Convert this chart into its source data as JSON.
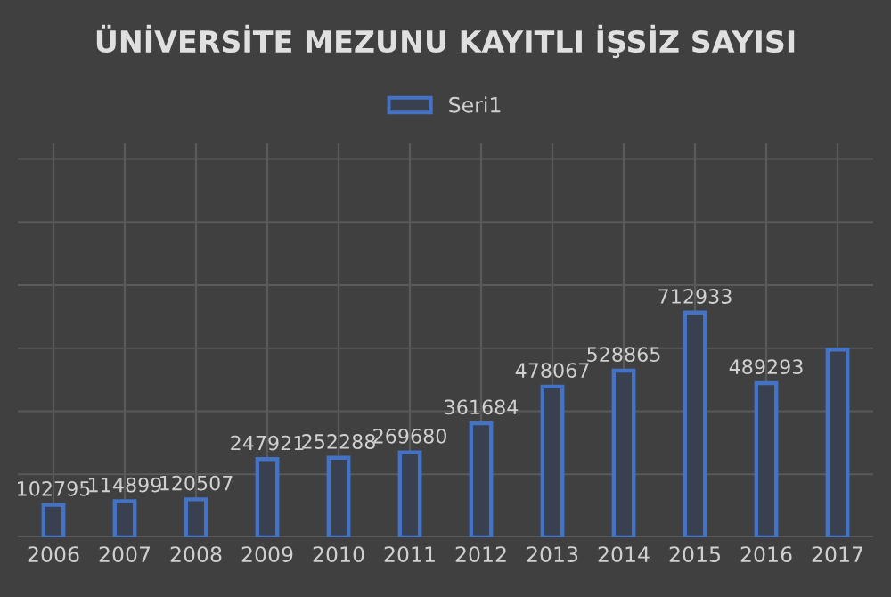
{
  "chart_data": {
    "type": "bar",
    "title": "ÜNİVERSİTE MEZUNU KAYITLI İŞSİZ SAYISI",
    "categories": [
      "2006",
      "2007",
      "2008",
      "2009",
      "2010",
      "2011",
      "2012",
      "2013",
      "2014",
      "2015",
      "2016",
      "2017"
    ],
    "series": [
      {
        "name": "Seri1",
        "color": "#4472c4",
        "values": [
          102795,
          114899,
          120507,
          247921,
          252288,
          269680,
          361684,
          478067,
          528865,
          712933,
          489293,
          596000
        ],
        "value_labels": [
          "102795",
          "114899",
          "120507",
          "247921",
          "252288",
          "269680",
          "361684",
          "478067",
          "528865",
          "712933",
          "489293",
          null
        ]
      }
    ],
    "ylim": [
      0,
      1250000
    ],
    "yticks": [
      {
        "value": 0,
        "label": null
      },
      {
        "value": 200000,
        "label": null
      },
      {
        "value": 400000,
        "label": null
      },
      {
        "value": 600000,
        "label": null
      },
      {
        "value": 800000,
        "label": null
      },
      {
        "value": 1000000,
        "label": null
      },
      {
        "value": 1200000,
        "label": null
      }
    ],
    "grid": true,
    "legend": "top",
    "tick_labels": "x"
  }
}
